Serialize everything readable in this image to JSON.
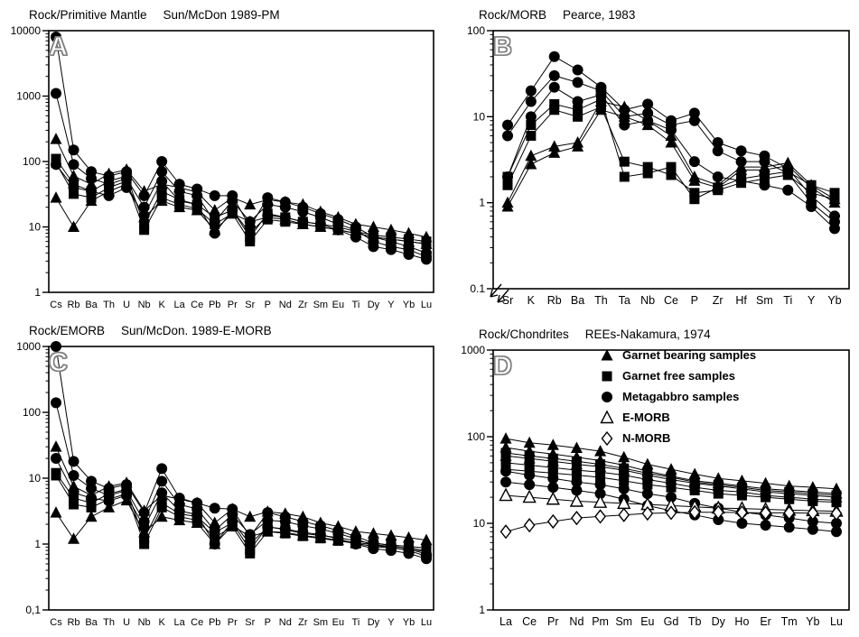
{
  "figure": {
    "background": "#ffffff",
    "line_color": "#000000",
    "marker_color": "#000000"
  },
  "chart_data": [
    {
      "type": "line",
      "id": "A",
      "letter": "A",
      "title_left": "Rock/Primitive Mantle",
      "title_right": "Sun/McDon  1989-PM",
      "ylim": [
        1,
        10000
      ],
      "yticks": [
        1,
        10,
        100,
        1000,
        10000
      ],
      "ytick_labels": [
        "1",
        "10",
        "100",
        "1000",
        "10000"
      ],
      "yscale": "log",
      "grid": false,
      "axis_break": false,
      "xpad": 8,
      "categories": [
        "Cs",
        "Rb",
        "Ba",
        "Th",
        "U",
        "Nb",
        "K",
        "La",
        "Ce",
        "Pb",
        "Pr",
        "Sr",
        "P",
        "Nd",
        "Zr",
        "Sm",
        "Eu",
        "Ti",
        "Dy",
        "Y",
        "Yb",
        "Lu"
      ],
      "series": [
        {
          "name": "metagabbro-1",
          "marker": "circle-filled",
          "values": [
            8000,
            150,
            70,
            60,
            70,
            30,
            100,
            45,
            38,
            30,
            30,
            10,
            28,
            24,
            20,
            16,
            13,
            10,
            7,
            6,
            5,
            4
          ]
        },
        {
          "name": "metagabbro-2",
          "marker": "circle-filled",
          "values": [
            1100,
            90,
            55,
            45,
            55,
            20,
            70,
            35,
            30,
            12,
            25,
            12,
            22,
            20,
            17,
            14,
            11,
            9,
            6,
            5,
            4.5,
            3.5
          ]
        },
        {
          "name": "metagabbro-3",
          "marker": "circle-filled",
          "values": [
            90,
            40,
            35,
            30,
            40,
            15,
            50,
            25,
            22,
            8,
            18,
            8,
            15,
            14,
            12,
            11,
            9,
            7,
            5,
            4.5,
            3.8,
            3.2
          ]
        },
        {
          "name": "garnet-bearing-1",
          "marker": "triangle-filled",
          "values": [
            220,
            60,
            45,
            65,
            75,
            35,
            45,
            40,
            34,
            18,
            28,
            22,
            26,
            24,
            22,
            17,
            14,
            11,
            10,
            9,
            8,
            7
          ]
        },
        {
          "name": "garnet-bearing-2",
          "marker": "triangle-filled",
          "values": [
            28,
            10,
            25,
            35,
            45,
            14,
            25,
            20,
            18,
            9,
            16,
            12,
            14,
            13,
            11,
            10,
            9,
            8,
            7,
            6.5,
            6,
            5.5
          ]
        },
        {
          "name": "garnet-free-1",
          "marker": "square-filled",
          "values": [
            110,
            45,
            35,
            50,
            60,
            11,
            35,
            26,
            22,
            14,
            18,
            7,
            16,
            14,
            12,
            11,
            10,
            8.5,
            7.5,
            7,
            6.5,
            6
          ]
        },
        {
          "name": "garnet-free-2",
          "marker": "square-filled",
          "values": [
            95,
            32,
            28,
            40,
            50,
            9,
            28,
            22,
            19,
            11,
            16,
            6,
            13,
            12,
            11,
            10,
            9,
            8,
            7,
            6.5,
            6,
            5.5
          ]
        }
      ]
    },
    {
      "type": "line",
      "id": "B",
      "letter": "B",
      "title_left": "Rock/MORB",
      "title_right": "Pearce, 1983",
      "ylim": [
        0.1,
        100
      ],
      "yticks": [
        0.1,
        1,
        10,
        100
      ],
      "ytick_labels": [
        "0.1",
        "1",
        "10",
        "100"
      ],
      "yscale": "log",
      "grid": false,
      "axis_break": true,
      "xpad": 16,
      "categories": [
        "Sr",
        "K",
        "Rb",
        "Ba",
        "Th",
        "Ta",
        "Nb",
        "Ce",
        "P",
        "Zr",
        "Hf",
        "Sm",
        "Ti",
        "Y",
        "Yb"
      ],
      "series": [
        {
          "name": "metagabbro-1",
          "marker": "circle-filled",
          "values": [
            8,
            20,
            50,
            35,
            22,
            12,
            14,
            9,
            11,
            5,
            4,
            3.5,
            2.5,
            1.2,
            0.7
          ]
        },
        {
          "name": "metagabbro-2",
          "marker": "circle-filled",
          "values": [
            6,
            15,
            30,
            25,
            20,
            10,
            11,
            8,
            9,
            4,
            3,
            3,
            2.2,
            1,
            0.6
          ]
        },
        {
          "name": "metagabbro-3",
          "marker": "circle-filled",
          "values": [
            2,
            10,
            22,
            15,
            18,
            8,
            9,
            7,
            3,
            2,
            1.8,
            1.6,
            1.4,
            0.9,
            0.5
          ]
        },
        {
          "name": "garnet-bearing-1",
          "marker": "triangle-filled",
          "values": [
            1,
            3.5,
            4.5,
            5,
            15,
            13,
            9,
            6,
            2,
            1.6,
            2.6,
            2.6,
            2.9,
            1.6,
            1.1
          ]
        },
        {
          "name": "garnet-bearing-2",
          "marker": "triangle-filled",
          "values": [
            0.9,
            2.8,
            3.8,
            4.5,
            12,
            10,
            8,
            5,
            1.8,
            1.5,
            2.4,
            2.4,
            2.7,
            1.5,
            1
          ]
        },
        {
          "name": "garnet-free-1",
          "marker": "square-filled",
          "values": [
            2,
            8,
            14,
            12,
            16,
            2,
            2.2,
            2.6,
            1.1,
            1.5,
            1.9,
            2.1,
            2.3,
            1.6,
            1.3
          ]
        },
        {
          "name": "garnet-free-2",
          "marker": "square-filled",
          "values": [
            1.6,
            6,
            12,
            10,
            13,
            3,
            2.6,
            2.1,
            1.3,
            1.4,
            1.7,
            1.9,
            2.1,
            1.3,
            1.1
          ]
        }
      ]
    },
    {
      "type": "line",
      "id": "C",
      "letter": "C",
      "title_left": "Rock/EMORB",
      "title_right": "Sun/McDon. 1989-E-MORB",
      "ylim": [
        0.1,
        1000
      ],
      "yticks": [
        0.1,
        1,
        10,
        100,
        1000
      ],
      "ytick_labels": [
        "0,1",
        "1",
        "10",
        "100",
        "1000"
      ],
      "yscale": "log",
      "grid": false,
      "axis_break": false,
      "xpad": 8,
      "categories": [
        "Cs",
        "Rb",
        "Ba",
        "Th",
        "U",
        "Nb",
        "K",
        "La",
        "Ce",
        "Pb",
        "Pr",
        "Sr",
        "P",
        "Nd",
        "Zr",
        "Sm",
        "Eu",
        "Ti",
        "Dy",
        "Y",
        "Yb",
        "Lu"
      ],
      "series": [
        {
          "name": "metagabbro-1",
          "marker": "circle-filled",
          "values": [
            1000,
            18,
            9,
            7,
            8,
            3,
            14,
            5,
            4.2,
            3.5,
            3.4,
            1.3,
            3,
            2.6,
            2.2,
            1.9,
            1.6,
            1.3,
            1.05,
            0.95,
            0.85,
            0.7
          ]
        },
        {
          "name": "metagabbro-2",
          "marker": "circle-filled",
          "values": [
            140,
            11,
            7,
            5.5,
            6.5,
            2.2,
            9,
            4,
            3.4,
            1.6,
            2.8,
            1.4,
            2.3,
            2.2,
            1.9,
            1.7,
            1.45,
            1.2,
            0.95,
            0.9,
            0.8,
            0.65
          ]
        },
        {
          "name": "metagabbro-3",
          "marker": "circle-filled",
          "values": [
            20,
            6,
            5,
            4.5,
            5.5,
            1.8,
            6,
            3.2,
            2.8,
            1,
            2.2,
            1,
            1.8,
            1.7,
            1.5,
            1.4,
            1.2,
            1,
            0.85,
            0.8,
            0.72,
            0.6
          ]
        },
        {
          "name": "garnet-bearing-1",
          "marker": "triangle-filled",
          "values": [
            30,
            7.5,
            5.5,
            7.5,
            8.5,
            3.2,
            5.5,
            4.8,
            4.2,
            2.1,
            3.4,
            2.6,
            3.1,
            2.9,
            2.6,
            2.1,
            1.85,
            1.55,
            1.45,
            1.35,
            1.25,
            1.15
          ]
        },
        {
          "name": "garnet-bearing-2",
          "marker": "triangle-filled",
          "values": [
            3,
            1.2,
            2.6,
            3.6,
            4.6,
            1.5,
            2.6,
            2.3,
            2.1,
            1,
            1.9,
            1.3,
            1.55,
            1.5,
            1.35,
            1.25,
            1.15,
            1.05,
            0.98,
            0.92,
            0.87,
            0.8
          ]
        },
        {
          "name": "garnet-free-1",
          "marker": "square-filled",
          "values": [
            12,
            5,
            4.2,
            5.8,
            6.8,
            1.2,
            4.2,
            2.9,
            2.6,
            1.5,
            2.1,
            0.82,
            1.85,
            1.65,
            1.45,
            1.35,
            1.25,
            1.12,
            1.02,
            0.97,
            0.92,
            0.87
          ]
        },
        {
          "name": "garnet-free-2",
          "marker": "square-filled",
          "values": [
            11,
            4,
            3.6,
            4.8,
            5.8,
            1,
            3.6,
            2.6,
            2.3,
            1.25,
            1.85,
            0.72,
            1.55,
            1.45,
            1.32,
            1.22,
            1.12,
            1.02,
            0.92,
            0.87,
            0.82,
            0.77
          ]
        }
      ]
    },
    {
      "type": "line",
      "id": "D",
      "letter": "D",
      "title_left": "Rock/Chondrites",
      "title_right": "REEs-Nakamura, 1974",
      "ylim": [
        1,
        1000
      ],
      "yticks": [
        1,
        10,
        100,
        1000
      ],
      "ytick_labels": [
        "1",
        "10",
        "100",
        "1000"
      ],
      "yscale": "log",
      "grid": false,
      "axis_break": false,
      "xpad": 14,
      "categories": [
        "La",
        "Ce",
        "Pr",
        "Nd",
        "Pm",
        "Sm",
        "Eu",
        "Gd",
        "Tb",
        "Dy",
        "Ho",
        "Er",
        "Tm",
        "Yb",
        "Lu"
      ],
      "series": [
        {
          "name": "garnet-bearing-1",
          "marker": "triangle-filled",
          "values": [
            95,
            85,
            80,
            74,
            68,
            58,
            48,
            42,
            37,
            33,
            31,
            29,
            27,
            26,
            25
          ]
        },
        {
          "name": "garnet-bearing-2",
          "marker": "triangle-filled",
          "values": [
            75,
            68,
            63,
            58,
            53,
            47,
            40,
            35,
            31,
            29,
            27,
            25,
            24,
            23,
            22
          ]
        },
        {
          "name": "garnet-bearing-3",
          "marker": "triangle-filled",
          "values": [
            60,
            56,
            52,
            48,
            45,
            41,
            36,
            32,
            29,
            27,
            25,
            23,
            22,
            21,
            20
          ]
        },
        {
          "name": "garnet-free-1",
          "marker": "square-filled",
          "values": [
            65,
            60,
            56,
            52,
            48,
            43,
            38,
            34,
            30,
            28,
            26,
            24,
            23,
            22,
            21
          ]
        },
        {
          "name": "garnet-free-2",
          "marker": "square-filled",
          "values": [
            50,
            47,
            44,
            41,
            39,
            36,
            32,
            29,
            26,
            24,
            23,
            21,
            20,
            19,
            18.5
          ]
        },
        {
          "name": "garnet-free-3",
          "marker": "square-filled",
          "values": [
            42,
            40,
            38,
            36,
            34,
            31,
            28,
            26,
            24,
            22,
            21,
            20,
            19,
            18,
            17.5
          ]
        },
        {
          "name": "metagabbro-1",
          "marker": "circle-filled",
          "values": [
            40,
            36,
            33,
            30,
            28,
            25,
            22,
            20,
            17,
            15,
            13.5,
            12.5,
            11.5,
            10.5,
            10
          ]
        },
        {
          "name": "metagabbro-2",
          "marker": "circle-filled",
          "values": [
            30,
            28,
            26,
            24,
            22,
            19,
            16,
            14,
            12.5,
            11,
            10,
            9.5,
            9,
            8.5,
            8
          ]
        },
        {
          "name": "e-morb",
          "marker": "triangle-open",
          "values": [
            21,
            20,
            19,
            18,
            17.5,
            17,
            16.5,
            16,
            15.5,
            15,
            14.8,
            14.5,
            14.2,
            14,
            13.8
          ]
        },
        {
          "name": "n-morb",
          "marker": "diamond-open",
          "values": [
            8,
            9.5,
            10.5,
            11.5,
            12,
            12.5,
            13,
            13.2,
            13.4,
            13.4,
            13.3,
            13.2,
            13.2,
            13.1,
            13
          ]
        }
      ],
      "legend": {
        "position": "top-right",
        "entries": [
          {
            "marker": "triangle-filled",
            "label": "Garnet bearing samples"
          },
          {
            "marker": "square-filled",
            "label": "Garnet free samples"
          },
          {
            "marker": "circle-filled",
            "label": "Metagabbro samples"
          },
          {
            "marker": "triangle-open",
            "label": "E-MORB"
          },
          {
            "marker": "diamond-open",
            "label": "N-MORB"
          }
        ]
      }
    }
  ]
}
